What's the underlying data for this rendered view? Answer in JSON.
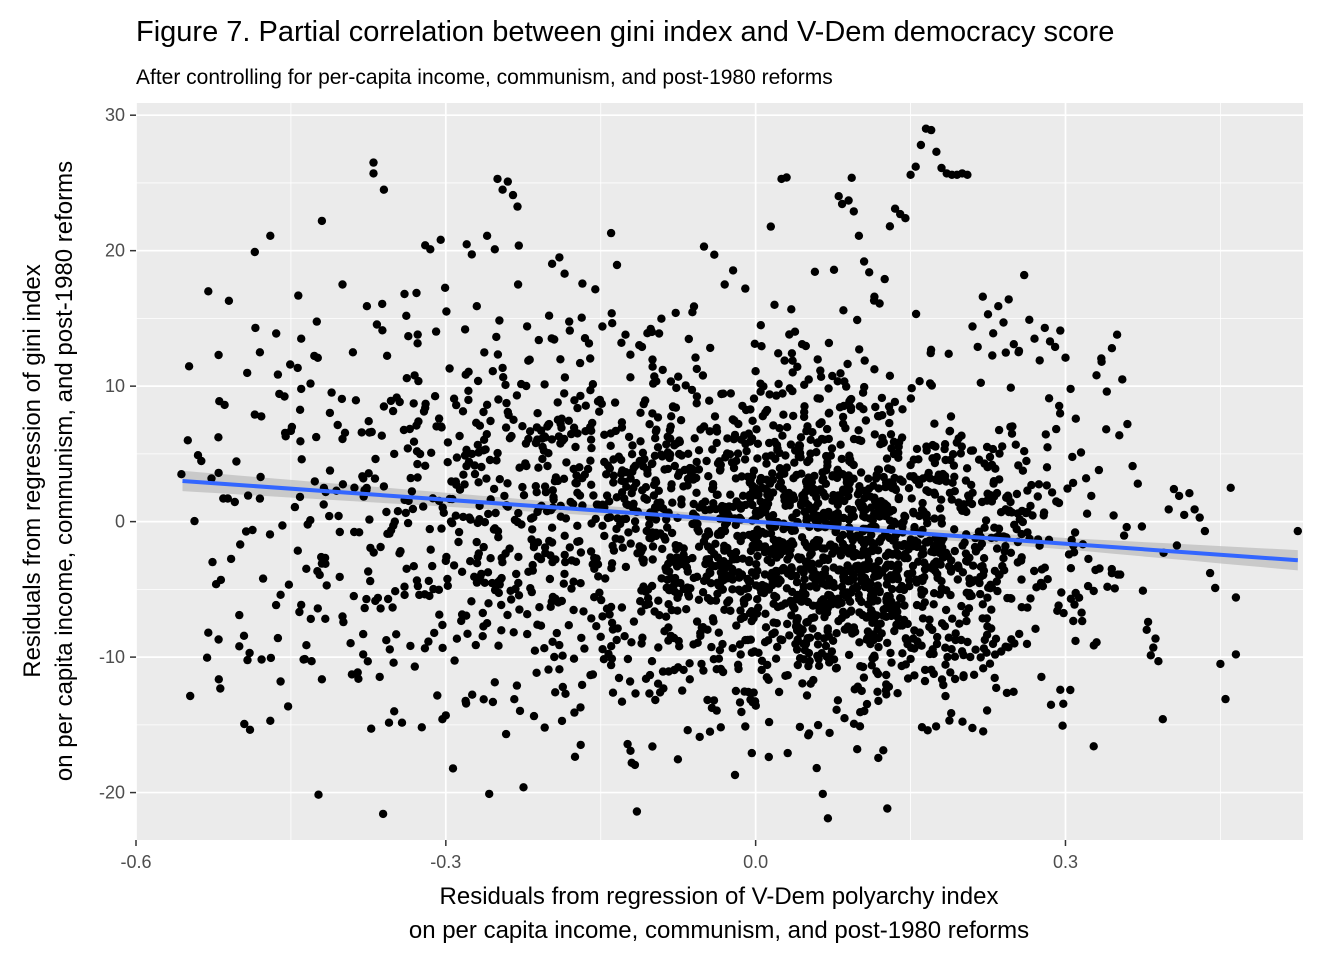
{
  "chart_data": {
    "type": "scatter",
    "title": "Figure 7. Partial correlation between gini index and V-Dem democracy score",
    "subtitle": "After controlling for per-capita income, communism, and post-1980 reforms",
    "xlabel": [
      "Residuals from regression of V-Dem polyarchy index",
      "on per capita income, communism, and post-1980 reforms"
    ],
    "ylabel": [
      "Residuals from regression of gini index",
      "on per capita income, communism, and post-1980 reforms"
    ],
    "xlim": [
      -0.6,
      0.53
    ],
    "ylim": [
      -23.5,
      30.9
    ],
    "x_ticks": [
      -0.6,
      -0.3,
      0.0,
      0.3
    ],
    "x_tick_labels": [
      "-0.6",
      "-0.3",
      "0.0",
      "0.3"
    ],
    "y_ticks": [
      -20,
      -10,
      0,
      10,
      20,
      30
    ],
    "y_tick_labels": [
      "-20",
      "-10",
      "0",
      "10",
      "20",
      "30"
    ],
    "grid": true,
    "point_color": "#000000",
    "fit_color": "#3366FF",
    "band_color": "#bdbdbd",
    "panel_color": "#ebebeb",
    "fit_line": {
      "x": [
        -0.555,
        0.525
      ],
      "y": [
        3.0,
        -2.85
      ]
    },
    "fit_band_halfwidth": {
      "x": [
        -0.555,
        -0.2,
        0.0,
        0.3,
        0.525
      ],
      "w": [
        0.75,
        0.42,
        0.3,
        0.42,
        0.75
      ]
    },
    "series": [
      {
        "points": [
          [
            -0.556,
            3.5
          ],
          [
            -0.54,
            4.9
          ],
          [
            -0.53,
            17
          ],
          [
            -0.52,
            12.3
          ],
          [
            -0.51,
            16.3
          ],
          [
            -0.53,
            -8.2
          ],
          [
            -0.52,
            -8.7
          ],
          [
            -0.5,
            -9.2
          ],
          [
            -0.49,
            -9.7
          ],
          [
            -0.485,
            19.9
          ],
          [
            -0.48,
            12.5
          ],
          [
            -0.47,
            21.1
          ],
          [
            -0.47,
            -14.7
          ],
          [
            -0.46,
            -11.8
          ],
          [
            -0.455,
            6.3
          ],
          [
            -0.45,
            6.7
          ],
          [
            -0.44,
            13.5
          ],
          [
            -0.43,
            -10.3
          ],
          [
            -0.42,
            22.2
          ],
          [
            -0.4,
            17.5
          ],
          [
            -0.4,
            -7
          ],
          [
            -0.39,
            12.5
          ],
          [
            -0.38,
            -9.8
          ],
          [
            -0.37,
            26.5
          ],
          [
            -0.37,
            25.7
          ],
          [
            -0.36,
            24.5
          ],
          [
            -0.36,
            8.5
          ],
          [
            -0.35,
            5
          ],
          [
            -0.35,
            -14
          ],
          [
            -0.34,
            16.8
          ],
          [
            -0.33,
            -10.7
          ],
          [
            -0.32,
            20.4
          ],
          [
            -0.315,
            20.1
          ],
          [
            -0.305,
            20.8
          ],
          [
            -0.3,
            -14.3
          ],
          [
            -0.29,
            8.6
          ],
          [
            -0.28,
            4.1
          ],
          [
            -0.27,
            15.9
          ],
          [
            -0.26,
            21.1
          ],
          [
            -0.258,
            -20.1
          ],
          [
            -0.25,
            25.3
          ],
          [
            -0.245,
            24.5
          ],
          [
            -0.24,
            25.1
          ],
          [
            -0.235,
            24.1
          ],
          [
            -0.23,
            17.5
          ],
          [
            -0.22,
            6.1
          ],
          [
            -0.21,
            13.4
          ],
          [
            -0.2,
            15.2
          ],
          [
            -0.19,
            -10.9
          ],
          [
            -0.18,
            14.1
          ],
          [
            -0.19,
            19.5
          ],
          [
            -0.185,
            18.3
          ],
          [
            -0.17,
            11.7
          ],
          [
            -0.16,
            9.7
          ],
          [
            -0.15,
            -8.5
          ],
          [
            -0.14,
            21.3
          ],
          [
            -0.13,
            13.2
          ],
          [
            -0.12,
            -17.8
          ],
          [
            -0.115,
            -21.4
          ],
          [
            -0.11,
            12.9
          ],
          [
            -0.1,
            -16.6
          ],
          [
            -0.09,
            11.2
          ],
          [
            -0.085,
            5.1
          ],
          [
            -0.08,
            8.5
          ],
          [
            -0.075,
            10.7
          ],
          [
            -0.07,
            2.6
          ],
          [
            -0.06,
            1.3
          ],
          [
            -0.05,
            20.3
          ],
          [
            -0.04,
            19.7
          ],
          [
            -0.03,
            17.5
          ],
          [
            -0.02,
            -18.7
          ],
          [
            -0.01,
            17.2
          ],
          [
            0.0,
            11.1
          ],
          [
            0.005,
            14.5
          ],
          [
            0.01,
            4.8
          ],
          [
            0.015,
            -4.1
          ],
          [
            0.02,
            9.3
          ],
          [
            0.025,
            25.3
          ],
          [
            0.03,
            25.4
          ],
          [
            0.035,
            -3.5
          ],
          [
            0.04,
            -7.9
          ],
          [
            0.045,
            13.1
          ],
          [
            0.05,
            4.4
          ],
          [
            0.055,
            6.6
          ],
          [
            0.06,
            9.1
          ],
          [
            0.065,
            -20.1
          ],
          [
            0.07,
            -21.9
          ],
          [
            0.075,
            -8.8
          ],
          [
            0.08,
            1.9
          ],
          [
            0.085,
            15.6
          ],
          [
            0.09,
            23.7
          ],
          [
            0.095,
            22.9
          ],
          [
            0.1,
            21.1
          ],
          [
            0.105,
            19.2
          ],
          [
            0.11,
            18.4
          ],
          [
            0.115,
            16.6
          ],
          [
            0.12,
            16.1
          ],
          [
            0.125,
            17.9
          ],
          [
            0.13,
            21.8
          ],
          [
            0.135,
            23.1
          ],
          [
            0.14,
            22.7
          ],
          [
            0.145,
            22.4
          ],
          [
            0.15,
            25.6
          ],
          [
            0.155,
            26.2
          ],
          [
            0.16,
            27.8
          ],
          [
            0.165,
            29.0
          ],
          [
            0.17,
            28.9
          ],
          [
            0.175,
            27.3
          ],
          [
            0.18,
            26.1
          ],
          [
            0.185,
            25.7
          ],
          [
            0.19,
            25.6
          ],
          [
            0.195,
            25.6
          ],
          [
            0.2,
            25.7
          ],
          [
            0.205,
            25.6
          ],
          [
            0.21,
            14.4
          ],
          [
            0.215,
            12.9
          ],
          [
            0.22,
            16.6
          ],
          [
            0.225,
            15.3
          ],
          [
            0.23,
            13.9
          ],
          [
            0.235,
            15.9
          ],
          [
            0.24,
            14.7
          ],
          [
            0.245,
            16.4
          ],
          [
            0.25,
            13.1
          ],
          [
            0.255,
            12.6
          ],
          [
            0.26,
            18.2
          ],
          [
            0.265,
            14.9
          ],
          [
            0.27,
            13.5
          ],
          [
            0.275,
            11.9
          ],
          [
            0.28,
            14.3
          ],
          [
            0.285,
            13.3
          ],
          [
            0.29,
            12.9
          ],
          [
            0.295,
            14.1
          ],
          [
            0.3,
            12.1
          ],
          [
            0.305,
            9.8
          ],
          [
            0.31,
            7.6
          ],
          [
            0.315,
            5.1
          ],
          [
            0.32,
            3.2
          ],
          [
            0.325,
            1.9
          ],
          [
            0.33,
            10.8
          ],
          [
            0.335,
            11.8
          ],
          [
            0.34,
            9.6
          ],
          [
            0.345,
            12.8
          ],
          [
            0.35,
            13.8
          ],
          [
            0.355,
            10.5
          ],
          [
            0.36,
            7.2
          ],
          [
            0.365,
            4.1
          ],
          [
            0.37,
            2.8
          ],
          [
            0.375,
            -5.1
          ],
          [
            0.38,
            -7.4
          ],
          [
            0.385,
            -9.3
          ],
          [
            0.39,
            -10.3
          ],
          [
            0.395,
            -2.3
          ],
          [
            0.4,
            0.9
          ],
          [
            0.405,
            2.4
          ],
          [
            0.41,
            1.9
          ],
          [
            0.415,
            0.5
          ],
          [
            0.42,
            2.1
          ],
          [
            0.425,
            0.9
          ],
          [
            0.43,
            0.3
          ],
          [
            0.435,
            -0.7
          ],
          [
            0.44,
            -3.8
          ],
          [
            0.445,
            -4.9
          ],
          [
            0.45,
            -10.5
          ],
          [
            0.455,
            -13.1
          ],
          [
            0.46,
            2.5
          ],
          [
            0.465,
            -5.6
          ],
          [
            0.465,
            -9.8
          ],
          [
            0.525,
            -0.7
          ],
          [
            -0.0,
            0.3
          ],
          [
            0.02,
            -1.8
          ],
          [
            0.05,
            2.6
          ],
          [
            0.08,
            -3.6
          ],
          [
            0.1,
            1.4
          ],
          [
            0.12,
            -5.2
          ],
          [
            0.14,
            3.1
          ],
          [
            0.16,
            -0.9
          ],
          [
            0.18,
            -4.4
          ],
          [
            0.2,
            0.8
          ],
          [
            0.22,
            -6.1
          ],
          [
            0.24,
            -2.7
          ],
          [
            -0.02,
            6.4
          ],
          [
            -0.04,
            -2.4
          ],
          [
            -0.06,
            3.8
          ],
          [
            -0.08,
            -4.9
          ],
          [
            -0.1,
            -0.8
          ],
          [
            -0.12,
            2.1
          ],
          [
            -0.14,
            -6.3
          ],
          [
            -0.16,
            4.5
          ],
          [
            -0.18,
            -1.9
          ],
          [
            -0.2,
            7.2
          ],
          [
            -0.22,
            -3.7
          ],
          [
            -0.24,
            1.1
          ],
          [
            -0.26,
            -7.5
          ],
          [
            -0.28,
            5.3
          ],
          [
            -0.3,
            -2.9
          ],
          [
            -0.32,
            8.4
          ],
          [
            -0.34,
            -4.8
          ],
          [
            -0.36,
            2.6
          ],
          [
            -0.38,
            -8.3
          ],
          [
            -0.4,
            6.1
          ],
          [
            -0.42,
            -3.1
          ],
          [
            -0.44,
            9.8
          ],
          [
            -0.46,
            -5.4
          ],
          [
            -0.48,
            1.7
          ],
          [
            -0.5,
            -6.9
          ],
          [
            -0.52,
            3.6
          ],
          [
            0.26,
            5.2
          ],
          [
            0.28,
            -3.4
          ]
        ]
      }
    ]
  }
}
